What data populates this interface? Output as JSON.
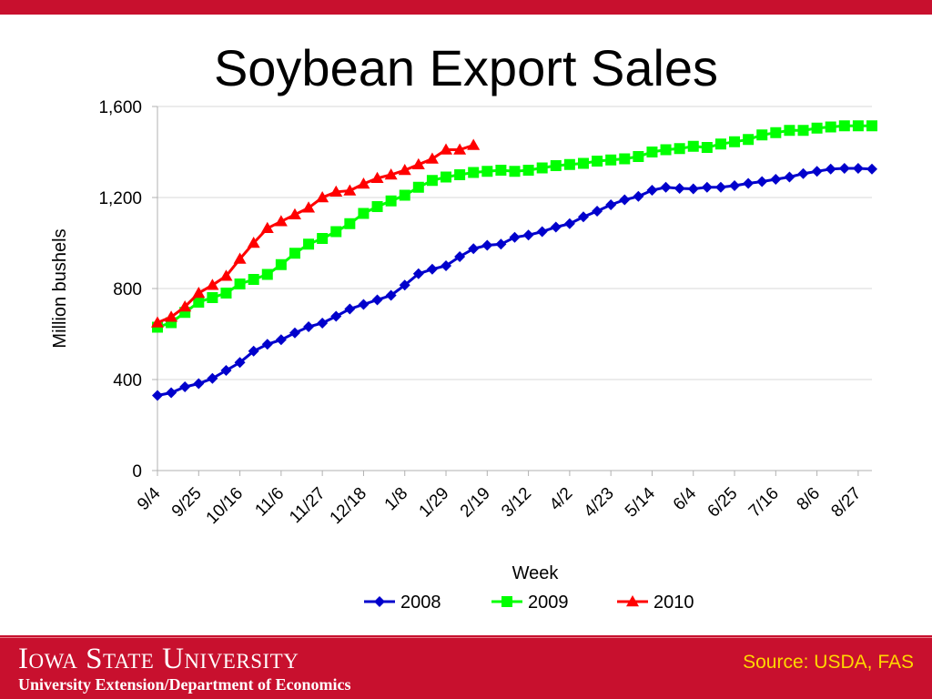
{
  "slide": {
    "title": "Soybean Export Sales",
    "source": "Source: USDA, FAS",
    "university": "Iowa State University",
    "department": "University Extension/Department of Economics"
  },
  "chart_data": {
    "type": "line",
    "title": "",
    "xlabel": "Week",
    "ylabel": "Million bushels",
    "ylim": [
      0,
      1600
    ],
    "yticks": [
      0,
      400,
      800,
      1200,
      1600
    ],
    "ytick_labels": [
      "0",
      "400",
      "800",
      "1,200",
      "1,600"
    ],
    "x_tick_labels": [
      "9/4",
      "9/25",
      "10/16",
      "11/6",
      "11/27",
      "12/18",
      "1/8",
      "1/29",
      "2/19",
      "3/12",
      "4/2",
      "4/23",
      "5/14",
      "6/4",
      "6/25",
      "7/16",
      "8/6",
      "8/27"
    ],
    "x_tick_every": 3,
    "n_weeks": 53,
    "grid": "horizontal",
    "legend": "bottom",
    "series": [
      {
        "name": "2008",
        "color": "#0000cc",
        "marker": "diamond",
        "values": [
          330,
          342,
          368,
          382,
          405,
          440,
          475,
          525,
          555,
          575,
          605,
          632,
          648,
          678,
          710,
          730,
          750,
          770,
          815,
          865,
          885,
          900,
          940,
          975,
          990,
          995,
          1025,
          1035,
          1050,
          1070,
          1085,
          1115,
          1140,
          1168,
          1190,
          1205,
          1232,
          1245,
          1240,
          1238,
          1245,
          1245,
          1252,
          1262,
          1270,
          1280,
          1290,
          1305,
          1315,
          1325,
          1328,
          1328,
          1325
        ]
      },
      {
        "name": "2009",
        "color": "#00ff00",
        "marker": "square",
        "values": [
          630,
          650,
          695,
          740,
          760,
          780,
          820,
          840,
          862,
          905,
          955,
          995,
          1020,
          1050,
          1085,
          1130,
          1160,
          1185,
          1210,
          1245,
          1275,
          1290,
          1300,
          1310,
          1315,
          1320,
          1315,
          1320,
          1330,
          1340,
          1345,
          1350,
          1360,
          1365,
          1370,
          1380,
          1400,
          1410,
          1415,
          1425,
          1420,
          1435,
          1445,
          1455,
          1475,
          1485,
          1495,
          1495,
          1505,
          1510,
          1515,
          1515,
          1515
        ]
      },
      {
        "name": "2010",
        "color": "#ff0000",
        "marker": "triangle",
        "values": [
          650,
          675,
          720,
          780,
          815,
          855,
          930,
          1000,
          1065,
          1095,
          1125,
          1155,
          1200,
          1225,
          1230,
          1260,
          1285,
          1300,
          1320,
          1345,
          1370,
          1410,
          1410,
          1430
        ]
      }
    ]
  }
}
